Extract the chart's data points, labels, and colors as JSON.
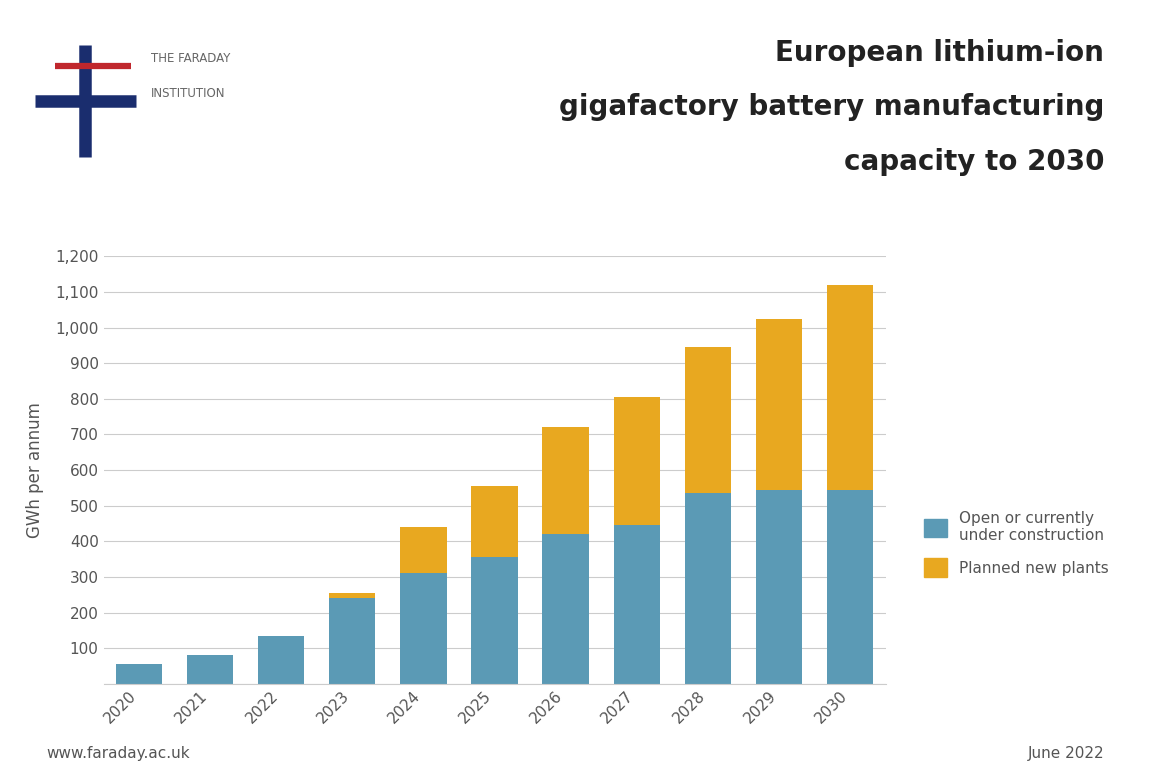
{
  "years": [
    2020,
    2021,
    2022,
    2023,
    2024,
    2025,
    2026,
    2027,
    2028,
    2029,
    2030
  ],
  "blue_values": [
    55,
    80,
    135,
    240,
    310,
    355,
    420,
    445,
    535,
    545,
    545
  ],
  "yellow_values": [
    0,
    0,
    0,
    15,
    130,
    200,
    300,
    360,
    410,
    480,
    575
  ],
  "blue_color": "#5b9ab5",
  "yellow_color": "#e8a820",
  "title_line1": "European lithium-ion",
  "title_line2": "gigafactory battery manufacturing",
  "title_line3": "capacity to 2030",
  "ylabel": "GWh per annum",
  "ylim": [
    0,
    1200
  ],
  "yticks": [
    0,
    100,
    200,
    300,
    400,
    500,
    600,
    700,
    800,
    900,
    1000,
    1100,
    1200
  ],
  "ytick_labels": [
    "",
    "100",
    "200",
    "300",
    "400",
    "500",
    "600",
    "700",
    "800",
    "900",
    "1,000",
    "1,100",
    "1,200"
  ],
  "legend_blue": "Open or currently\nunder construction",
  "legend_yellow": "Planned new plants",
  "footer_left": "www.faraday.ac.uk",
  "footer_right": "June 2022",
  "background_color": "#ffffff",
  "grid_color": "#cccccc",
  "faraday_cross_blue": "#1a2d6e",
  "faraday_cross_red": "#c0272d",
  "title_color": "#222222",
  "text_color": "#555555",
  "bar_width": 0.65
}
